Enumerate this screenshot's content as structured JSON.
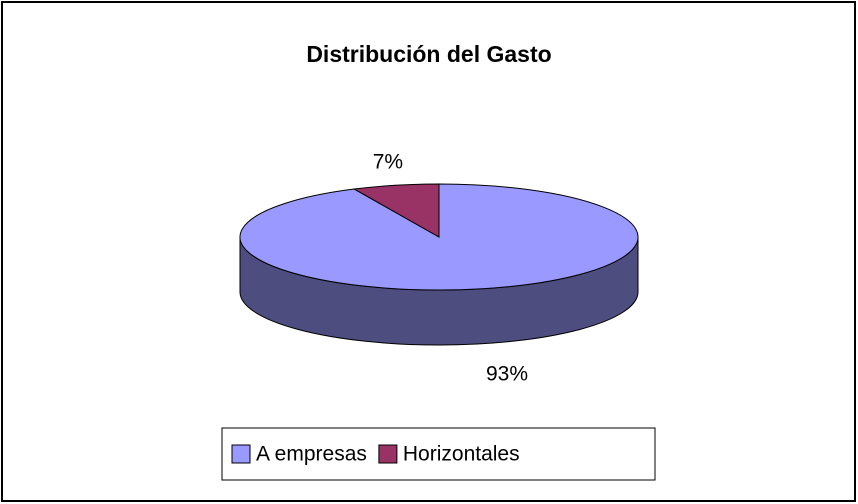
{
  "chart_data": {
    "type": "pie3d",
    "title": "Distribución del Gasto",
    "categories": [
      "A empresas",
      "Horizontales"
    ],
    "values": [
      93,
      7
    ],
    "value_labels": [
      "93%",
      "7%"
    ],
    "colors": [
      "#9999ff",
      "#993366"
    ],
    "legend": "bottom"
  }
}
